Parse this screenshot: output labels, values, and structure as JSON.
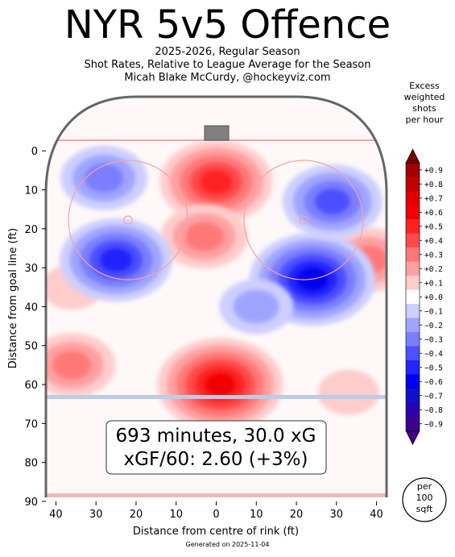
{
  "header": {
    "title": "NYR 5v5 Offence",
    "subtitle_1": "2025-2026, Regular Season",
    "subtitle_2": "Shot Rates, Relative to League Average for the Season",
    "subtitle_3": "Micah Blake McCurdy, @hockeyviz.com"
  },
  "colorbar": {
    "title_lines": [
      "Excess",
      "weighted",
      "shots",
      "per hour"
    ],
    "labels": [
      "+0.9",
      "+0.8",
      "+0.7",
      "+0.6",
      "+0.5",
      "+0.4",
      "+0.3",
      "+0.2",
      "+0.1",
      "+0.0",
      "−0.1",
      "−0.2",
      "−0.3",
      "−0.4",
      "−0.5",
      "−0.6",
      "−0.7",
      "−0.8",
      "−0.9"
    ],
    "colors": [
      "#a00000",
      "#c00000",
      "#e00000",
      "#f00000",
      "#ff2020",
      "#ff4a4a",
      "#ff7878",
      "#ffa0a0",
      "#ffcccc",
      "#ffffff",
      "#cccfff",
      "#a0a4ff",
      "#7a7eff",
      "#4c50ff",
      "#2424ff",
      "#0000ee",
      "#1010c8",
      "#2a00b0",
      "#3c0090"
    ],
    "cap_top_color": "#780000",
    "cap_bottom_color": "#3c0080"
  },
  "badge": {
    "lines": [
      "per",
      "100",
      "sqft"
    ]
  },
  "summary": {
    "line1": "693 minutes, 30.0 xG",
    "line2": "xGF/60: 2.60 (+3%)"
  },
  "footer": {
    "generated": "Generated on 2025-11-04"
  },
  "chart_data": {
    "type": "heatmap",
    "title": "NYR 5v5 Offence",
    "xlabel": "Distance from centre of rink (ft)",
    "ylabel": "Distance from goal line (ft)",
    "xlim": [
      -42.5,
      42.5
    ],
    "ylim": [
      90,
      -11
    ],
    "x_ticks": [
      -40,
      -30,
      -20,
      -10,
      0,
      10,
      20,
      30,
      40
    ],
    "x_tick_labels": [
      "40",
      "30",
      "20",
      "10",
      "0",
      "10",
      "20",
      "30",
      "40"
    ],
    "y_ticks": [
      0,
      10,
      20,
      30,
      40,
      50,
      60,
      70,
      80,
      90
    ],
    "y_tick_labels": [
      "0",
      "10",
      "20",
      "30",
      "40",
      "50",
      "60",
      "70",
      "80",
      "90"
    ],
    "grid": false,
    "units": "excess weighted shots per hour per 100 sqft",
    "hotspots": [
      {
        "x": 0,
        "y": 8,
        "value": 0.5
      },
      {
        "x": -3,
        "y": 22,
        "value": 0.3
      },
      {
        "x": 1,
        "y": 60,
        "value": 0.6
      },
      {
        "x": -36,
        "y": 55,
        "value": 0.3
      },
      {
        "x": -36,
        "y": 35,
        "value": 0.1
      },
      {
        "x": 38,
        "y": 28,
        "value": 0.3
      },
      {
        "x": 33,
        "y": 62,
        "value": 0.1
      },
      {
        "x": -28,
        "y": 7,
        "value": -0.3
      },
      {
        "x": -25,
        "y": 28,
        "value": -0.5
      },
      {
        "x": 24,
        "y": 33,
        "value": -0.6
      },
      {
        "x": 29,
        "y": 13,
        "value": -0.4
      },
      {
        "x": 10,
        "y": 40,
        "value": -0.2
      }
    ]
  }
}
